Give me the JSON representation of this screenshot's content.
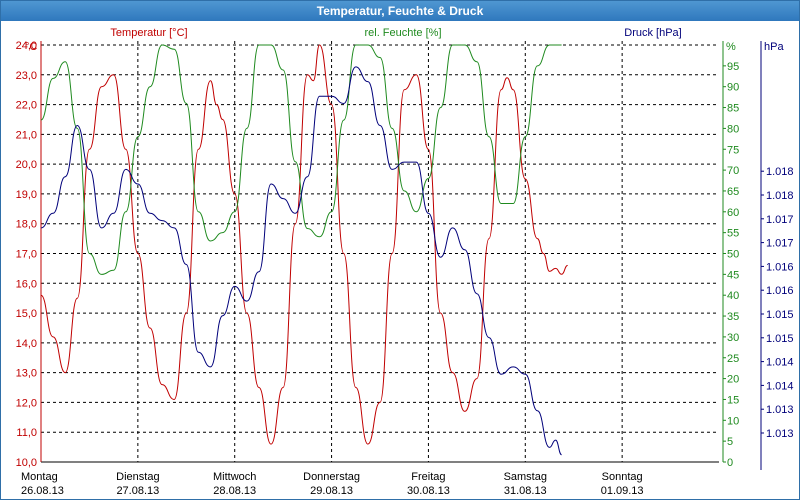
{
  "window": {
    "title": "Temperatur, Feuchte & Druck"
  },
  "colors": {
    "temperature": "#c00000",
    "humidity": "#1f8a1f",
    "pressure": "#00007a",
    "grid": "#000000",
    "title_bar": "#3a86c8"
  },
  "chart_data": {
    "type": "line",
    "title": "Temperatur, Feuchte & Druck",
    "grid": true,
    "x_axis": {
      "range": [
        "26.08.13 00:00",
        "02.09.13 00:00"
      ],
      "tick_labels": [
        {
          "day": "Montag",
          "date": "26.08.13"
        },
        {
          "day": "Dienstag",
          "date": "27.08.13"
        },
        {
          "day": "Mittwoch",
          "date": "28.08.13"
        },
        {
          "day": "Donnerstag",
          "date": "29.08.13"
        },
        {
          "day": "Freitag",
          "date": "30.08.13"
        },
        {
          "day": "Samstag",
          "date": "31.08.13"
        },
        {
          "day": "Sonntag",
          "date": "01.09.13"
        }
      ]
    },
    "left_axis": {
      "unit": "°C",
      "label": "Temperatur [°C]",
      "range": [
        10.0,
        24.0
      ],
      "ticks": [
        "10,0",
        "11,0",
        "12,0",
        "13,0",
        "14,0",
        "15,0",
        "16,0",
        "17,0",
        "18,0",
        "19,0",
        "20,0",
        "21,0",
        "22,0",
        "23,0",
        "24,0"
      ]
    },
    "middle_axis": {
      "unit": "%",
      "label": "rel. Feuchte [%]",
      "range": [
        0,
        100
      ],
      "ticks": [
        "0",
        "5",
        "10",
        "15",
        "20",
        "25",
        "30",
        "35",
        "40",
        "45",
        "50",
        "55",
        "60",
        "65",
        "70",
        "75",
        "80",
        "85",
        "90",
        "95"
      ]
    },
    "right_axis": {
      "unit": "hPa",
      "label": "Druck [hPa]",
      "range": [
        1012.8,
        1018.5
      ],
      "ticks": [
        "1.013",
        "1.013",
        "1.014",
        "1.014",
        "1.015",
        "1.015",
        "1.016",
        "1.016",
        "1.017",
        "1.017",
        "1.018",
        "1.018"
      ]
    },
    "series": [
      {
        "name": "Temperatur [°C]",
        "axis": "left",
        "points": [
          [
            "26.08.13 00:00",
            15.6
          ],
          [
            "26.08.13 03:00",
            14.2
          ],
          [
            "26.08.13 06:00",
            13.0
          ],
          [
            "26.08.13 09:00",
            15.5
          ],
          [
            "26.08.13 12:00",
            20.5
          ],
          [
            "26.08.13 15:00",
            22.6
          ],
          [
            "26.08.13 18:00",
            23.0
          ],
          [
            "26.08.13 21:00",
            20.5
          ],
          [
            "27.08.13 00:00",
            17.0
          ],
          [
            "27.08.13 03:00",
            14.5
          ],
          [
            "27.08.13 06:00",
            12.6
          ],
          [
            "27.08.13 09:00",
            12.1
          ],
          [
            "27.08.13 12:00",
            15.0
          ],
          [
            "27.08.13 15:00",
            20.5
          ],
          [
            "27.08.13 18:00",
            22.8
          ],
          [
            "27.08.13 19:30",
            22.0
          ],
          [
            "27.08.13 21:00",
            21.5
          ],
          [
            "28.08.13 00:00",
            19.0
          ],
          [
            "28.08.13 03:00",
            15.0
          ],
          [
            "28.08.13 06:00",
            12.5
          ],
          [
            "28.08.13 09:00",
            10.6
          ],
          [
            "28.08.13 12:00",
            12.5
          ],
          [
            "28.08.13 15:00",
            18.0
          ],
          [
            "28.08.13 18:00",
            23.0
          ],
          [
            "28.08.13 19:30",
            22.8
          ],
          [
            "28.08.13 21:00",
            24.0
          ],
          [
            "29.08.13 00:00",
            22.0
          ],
          [
            "29.08.13 03:00",
            17.0
          ],
          [
            "29.08.13 06:00",
            12.5
          ],
          [
            "29.08.13 09:00",
            10.6
          ],
          [
            "29.08.13 12:00",
            12.0
          ],
          [
            "29.08.13 15:00",
            17.0
          ],
          [
            "29.08.13 18:00",
            22.5
          ],
          [
            "29.08.13 21:00",
            23.0
          ],
          [
            "30.08.13 00:00",
            20.5
          ],
          [
            "30.08.13 03:00",
            15.0
          ],
          [
            "30.08.13 06:00",
            13.0
          ],
          [
            "30.08.13 09:00",
            11.7
          ],
          [
            "30.08.13 12:00",
            12.8
          ],
          [
            "30.08.13 15:00",
            17.5
          ],
          [
            "30.08.13 18:00",
            22.5
          ],
          [
            "30.08.13 19:30",
            22.9
          ],
          [
            "30.08.13 21:00",
            22.5
          ],
          [
            "31.08.13 00:00",
            19.5
          ],
          [
            "31.08.13 03:00",
            17.5
          ],
          [
            "31.08.13 04:30",
            17.0
          ],
          [
            "31.08.13 06:00",
            16.4
          ],
          [
            "31.08.13 07:30",
            16.5
          ],
          [
            "31.08.13 09:00",
            16.3
          ],
          [
            "31.08.13 10:30",
            16.6
          ]
        ]
      },
      {
        "name": "rel. Feuchte [%]",
        "axis": "middle",
        "points": [
          [
            "26.08.13 00:00",
            82
          ],
          [
            "26.08.13 03:00",
            92
          ],
          [
            "26.08.13 06:00",
            96
          ],
          [
            "26.08.13 09:00",
            80
          ],
          [
            "26.08.13 12:00",
            50
          ],
          [
            "26.08.13 15:00",
            45
          ],
          [
            "26.08.13 18:00",
            46
          ],
          [
            "26.08.13 21:00",
            60
          ],
          [
            "27.08.13 00:00",
            78
          ],
          [
            "27.08.13 03:00",
            90
          ],
          [
            "27.08.13 06:00",
            100
          ],
          [
            "27.08.13 09:00",
            99
          ],
          [
            "27.08.13 12:00",
            86
          ],
          [
            "27.08.13 15:00",
            60
          ],
          [
            "27.08.13 18:00",
            53
          ],
          [
            "27.08.13 21:00",
            55
          ],
          [
            "28.08.13 00:00",
            60
          ],
          [
            "28.08.13 03:00",
            80
          ],
          [
            "28.08.13 06:00",
            100
          ],
          [
            "28.08.13 09:00",
            100
          ],
          [
            "28.08.13 12:00",
            94
          ],
          [
            "28.08.13 15:00",
            72
          ],
          [
            "28.08.13 18:00",
            56
          ],
          [
            "28.08.13 21:00",
            54
          ],
          [
            "29.08.13 00:00",
            60
          ],
          [
            "29.08.13 03:00",
            82
          ],
          [
            "29.08.13 06:00",
            100
          ],
          [
            "29.08.13 09:00",
            100
          ],
          [
            "29.08.13 12:00",
            97
          ],
          [
            "29.08.13 15:00",
            80
          ],
          [
            "29.08.13 18:00",
            65
          ],
          [
            "29.08.13 21:00",
            60
          ],
          [
            "30.08.13 00:00",
            68
          ],
          [
            "30.08.13 03:00",
            85
          ],
          [
            "30.08.13 06:00",
            100
          ],
          [
            "30.08.13 09:00",
            100
          ],
          [
            "30.08.13 12:00",
            96
          ],
          [
            "30.08.13 15:00",
            78
          ],
          [
            "30.08.13 18:00",
            62
          ],
          [
            "30.08.13 21:00",
            62
          ],
          [
            "31.08.13 00:00",
            78
          ],
          [
            "31.08.13 03:00",
            95
          ],
          [
            "31.08.13 06:00",
            100
          ],
          [
            "31.08.13 09:00",
            100
          ]
        ]
      },
      {
        "name": "Druck [hPa]",
        "axis": "right",
        "points": [
          [
            "26.08.13 00:00",
            1016.0
          ],
          [
            "26.08.13 03:00",
            1016.2
          ],
          [
            "26.08.13 06:00",
            1016.7
          ],
          [
            "26.08.13 09:00",
            1017.4
          ],
          [
            "26.08.13 12:00",
            1016.8
          ],
          [
            "26.08.13 15:00",
            1016.0
          ],
          [
            "26.08.13 18:00",
            1016.2
          ],
          [
            "26.08.13 21:00",
            1016.8
          ],
          [
            "27.08.13 00:00",
            1016.6
          ],
          [
            "27.08.13 03:00",
            1016.2
          ],
          [
            "27.08.13 06:00",
            1016.1
          ],
          [
            "27.08.13 09:00",
            1016.0
          ],
          [
            "27.08.13 12:00",
            1015.5
          ],
          [
            "27.08.13 15:00",
            1014.3
          ],
          [
            "27.08.13 18:00",
            1014.1
          ],
          [
            "27.08.13 21:00",
            1014.8
          ],
          [
            "28.08.13 00:00",
            1015.2
          ],
          [
            "28.08.13 03:00",
            1015.0
          ],
          [
            "28.08.13 06:00",
            1015.4
          ],
          [
            "28.08.13 09:00",
            1016.6
          ],
          [
            "28.08.13 12:00",
            1016.4
          ],
          [
            "28.08.13 15:00",
            1016.2
          ],
          [
            "28.08.13 18:00",
            1016.7
          ],
          [
            "28.08.13 21:00",
            1017.8
          ],
          [
            "29.08.13 00:00",
            1017.8
          ],
          [
            "29.08.13 03:00",
            1017.7
          ],
          [
            "29.08.13 06:00",
            1018.2
          ],
          [
            "29.08.13 09:00",
            1018.0
          ],
          [
            "29.08.13 12:00",
            1017.4
          ],
          [
            "29.08.13 15:00",
            1016.8
          ],
          [
            "29.08.13 18:00",
            1016.9
          ],
          [
            "29.08.13 21:00",
            1016.9
          ],
          [
            "30.08.13 00:00",
            1016.2
          ],
          [
            "30.08.13 03:00",
            1015.6
          ],
          [
            "30.08.13 06:00",
            1016.0
          ],
          [
            "30.08.13 09:00",
            1015.7
          ],
          [
            "30.08.13 12:00",
            1015.1
          ],
          [
            "30.08.13 15:00",
            1014.5
          ],
          [
            "30.08.13 18:00",
            1014.0
          ],
          [
            "30.08.13 21:00",
            1014.1
          ],
          [
            "31.08.13 00:00",
            1014.0
          ],
          [
            "31.08.13 03:00",
            1013.5
          ],
          [
            "31.08.13 06:00",
            1013.0
          ],
          [
            "31.08.13 07:30",
            1013.1
          ],
          [
            "31.08.13 09:00",
            1012.9
          ]
        ]
      }
    ]
  }
}
